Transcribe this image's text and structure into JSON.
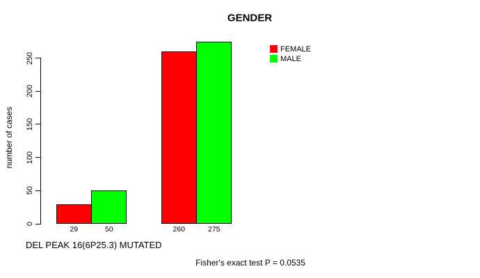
{
  "chart_data": {
    "type": "bar",
    "title": "GENDER",
    "xlabel": "DEL PEAK 16(6P25.3) MUTATED",
    "ylabel": "number of cases",
    "annotation": "Fisher's exact test P = 0.0535",
    "series": [
      {
        "name": "FEMALE",
        "color": "#ff0000",
        "values": [
          29,
          260
        ]
      },
      {
        "name": "MALE",
        "color": "#00ff00",
        "values": [
          50,
          275
        ]
      }
    ],
    "groups": 2,
    "bar_value_labels": [
      "29",
      "50",
      "260",
      "275"
    ],
    "yticks": [
      0,
      50,
      100,
      150,
      200,
      250
    ],
    "ylim": [
      0,
      262
    ],
    "grid": false,
    "legend_position": "top-right",
    "bar_border_color": "#000000",
    "background_color": "#ffffff"
  }
}
